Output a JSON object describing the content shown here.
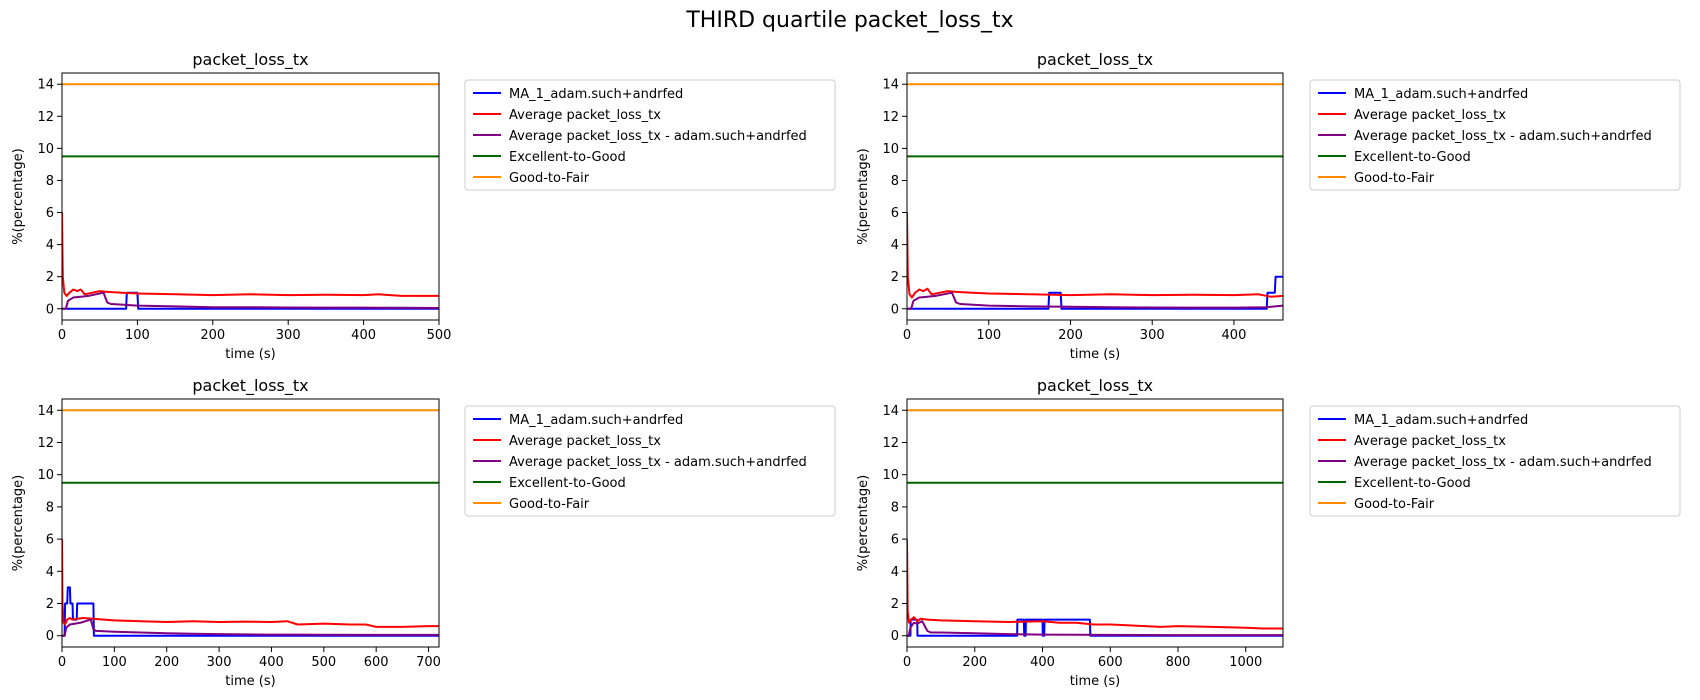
{
  "figure": {
    "title": "THIRD quartile packet_loss_tx"
  },
  "colors": {
    "ma1": "#0000ff",
    "average": "#ff0000",
    "average_user": "#800080",
    "excellent_to_good": "#006400",
    "good_to_fair": "#ff8c00"
  },
  "chart_data": [
    {
      "type": "line",
      "title": "packet_loss_tx",
      "xlabel": "time (s)",
      "ylabel": "%(percentage)",
      "xlim": [
        0,
        500
      ],
      "ylim": [
        -0.7,
        14.7
      ],
      "xticks": [
        0,
        100,
        200,
        300,
        400,
        500
      ],
      "yticks": [
        0,
        2,
        4,
        6,
        8,
        10,
        12,
        14
      ],
      "grid": false,
      "legend_position": "outside-right",
      "series": [
        {
          "name": "MA_1_adam.such+andrfed",
          "color_key": "ma1",
          "x": [
            0,
            85,
            86,
            100,
            101,
            500
          ],
          "y": [
            0,
            0,
            1,
            1,
            0,
            0
          ]
        },
        {
          "name": "Average packet_loss_tx",
          "color_key": "average",
          "x": [
            0,
            1,
            3,
            6,
            10,
            15,
            20,
            25,
            30,
            40,
            50,
            60,
            80,
            100,
            150,
            200,
            250,
            300,
            350,
            400,
            420,
            450,
            500
          ],
          "y": [
            6,
            2,
            1.0,
            0.8,
            1.0,
            1.2,
            1.1,
            1.2,
            0.9,
            1.0,
            1.1,
            1.05,
            1.0,
            0.95,
            0.9,
            0.85,
            0.9,
            0.85,
            0.88,
            0.85,
            0.9,
            0.8,
            0.8
          ]
        },
        {
          "name": "Average packet_loss_tx - adam.such+andrfed",
          "color_key": "average_user",
          "x": [
            0,
            5,
            8,
            15,
            25,
            35,
            45,
            55,
            60,
            65,
            100,
            150,
            200,
            250,
            300,
            350,
            400,
            450,
            500
          ],
          "y": [
            0,
            0,
            0.5,
            0.7,
            0.75,
            0.8,
            0.9,
            1.0,
            0.4,
            0.3,
            0.2,
            0.15,
            0.1,
            0.1,
            0.08,
            0.07,
            0.07,
            0.06,
            0.05
          ]
        },
        {
          "name": "Excellent-to-Good",
          "color_key": "excellent_to_good",
          "x": [
            0,
            500
          ],
          "y": [
            9.5,
            9.5
          ]
        },
        {
          "name": "Good-to-Fair",
          "color_key": "good_to_fair",
          "x": [
            0,
            500
          ],
          "y": [
            14,
            14
          ]
        }
      ]
    },
    {
      "type": "line",
      "title": "packet_loss_tx",
      "xlabel": "time (s)",
      "ylabel": "%(percentage)",
      "xlim": [
        0,
        460
      ],
      "ylim": [
        -0.7,
        14.7
      ],
      "xticks": [
        0,
        100,
        200,
        300,
        400
      ],
      "yticks": [
        0,
        2,
        4,
        6,
        8,
        10,
        12,
        14
      ],
      "grid": false,
      "legend_position": "outside-right",
      "series": [
        {
          "name": "MA_1_adam.such+andrfed",
          "color_key": "ma1",
          "x": [
            0,
            173,
            174,
            188,
            189,
            440,
            441,
            450,
            451,
            460
          ],
          "y": [
            0,
            0,
            1,
            1,
            0,
            0,
            1,
            1,
            2,
            2
          ]
        },
        {
          "name": "Average packet_loss_tx",
          "color_key": "average",
          "x": [
            0,
            1,
            3,
            6,
            10,
            15,
            20,
            25,
            30,
            40,
            50,
            60,
            80,
            100,
            150,
            200,
            250,
            300,
            350,
            400,
            430,
            445,
            460
          ],
          "y": [
            6,
            2,
            0.9,
            0.7,
            1.0,
            1.2,
            1.1,
            1.25,
            0.9,
            1.0,
            1.1,
            1.05,
            1.0,
            0.95,
            0.9,
            0.85,
            0.9,
            0.85,
            0.88,
            0.85,
            0.9,
            0.75,
            0.8
          ]
        },
        {
          "name": "Average packet_loss_tx - adam.such+andrfed",
          "color_key": "average_user",
          "x": [
            0,
            5,
            8,
            15,
            25,
            35,
            45,
            55,
            60,
            65,
            100,
            150,
            200,
            250,
            300,
            350,
            400,
            440,
            460
          ],
          "y": [
            0,
            0,
            0.5,
            0.7,
            0.75,
            0.8,
            0.9,
            1.0,
            0.4,
            0.3,
            0.2,
            0.15,
            0.12,
            0.1,
            0.08,
            0.07,
            0.07,
            0.1,
            0.2
          ]
        },
        {
          "name": "Excellent-to-Good",
          "color_key": "excellent_to_good",
          "x": [
            0,
            460
          ],
          "y": [
            9.5,
            9.5
          ]
        },
        {
          "name": "Good-to-Fair",
          "color_key": "good_to_fair",
          "x": [
            0,
            460
          ],
          "y": [
            14,
            14
          ]
        }
      ]
    },
    {
      "type": "line",
      "title": "packet_loss_tx",
      "xlabel": "time (s)",
      "ylabel": "%(percentage)",
      "xlim": [
        0,
        720
      ],
      "ylim": [
        -0.7,
        14.7
      ],
      "xticks": [
        0,
        100,
        200,
        300,
        400,
        500,
        600,
        700
      ],
      "yticks": [
        0,
        2,
        4,
        6,
        8,
        10,
        12,
        14
      ],
      "grid": false,
      "legend_position": "outside-right",
      "series": [
        {
          "name": "MA_1_adam.such+andrfed",
          "color_key": "ma1",
          "x": [
            0,
            5,
            6,
            10,
            11,
            15,
            16,
            20,
            21,
            28,
            29,
            60,
            61,
            720
          ],
          "y": [
            0,
            0,
            2,
            2,
            3,
            3,
            2,
            2,
            1,
            1,
            2,
            2,
            0,
            0
          ]
        },
        {
          "name": "Average packet_loss_tx",
          "color_key": "average",
          "x": [
            0,
            1,
            3,
            6,
            10,
            15,
            20,
            30,
            40,
            60,
            80,
            100,
            150,
            200,
            250,
            300,
            350,
            400,
            430,
            450,
            500,
            550,
            580,
            600,
            650,
            700,
            720
          ],
          "y": [
            6,
            2,
            0.8,
            0.7,
            1.0,
            1.1,
            1.0,
            1.05,
            1.1,
            1.05,
            1.0,
            0.95,
            0.9,
            0.85,
            0.9,
            0.85,
            0.88,
            0.85,
            0.9,
            0.7,
            0.75,
            0.7,
            0.7,
            0.55,
            0.55,
            0.6,
            0.6
          ]
        },
        {
          "name": "Average packet_loss_tx - adam.such+andrfed",
          "color_key": "average_user",
          "x": [
            0,
            5,
            8,
            15,
            25,
            35,
            45,
            55,
            60,
            65,
            100,
            150,
            200,
            250,
            300,
            350,
            400,
            450,
            500,
            600,
            720
          ],
          "y": [
            0,
            0,
            0.5,
            0.7,
            0.75,
            0.8,
            0.9,
            1.0,
            0.4,
            0.3,
            0.25,
            0.2,
            0.15,
            0.12,
            0.1,
            0.08,
            0.07,
            0.07,
            0.06,
            0.05,
            0.05
          ]
        },
        {
          "name": "Excellent-to-Good",
          "color_key": "excellent_to_good",
          "x": [
            0,
            720
          ],
          "y": [
            9.5,
            9.5
          ]
        },
        {
          "name": "Good-to-Fair",
          "color_key": "good_to_fair",
          "x": [
            0,
            720
          ],
          "y": [
            14,
            14
          ]
        }
      ]
    },
    {
      "type": "line",
      "title": "packet_loss_tx",
      "xlabel": "time (s)",
      "ylabel": "%(percentage)",
      "xlim": [
        0,
        1110
      ],
      "ylim": [
        -0.7,
        14.7
      ],
      "xticks": [
        0,
        200,
        400,
        600,
        800,
        1000
      ],
      "yticks": [
        0,
        2,
        4,
        6,
        8,
        10,
        12,
        14
      ],
      "grid": false,
      "legend_position": "outside-right",
      "series": [
        {
          "name": "MA_1_adam.such+andrfed",
          "color_key": "ma1",
          "x": [
            0,
            10,
            11,
            30,
            31,
            40,
            41,
            325,
            326,
            345,
            346,
            350,
            351,
            365,
            366,
            400,
            401,
            405,
            406,
            540,
            541,
            1110
          ],
          "y": [
            0,
            0,
            1,
            1,
            0,
            0,
            0,
            0,
            1,
            1,
            0,
            0,
            1,
            1,
            1,
            1,
            0,
            0,
            1,
            1,
            0,
            0
          ]
        },
        {
          "name": "Average packet_loss_tx",
          "color_key": "average",
          "x": [
            0,
            2,
            6,
            12,
            20,
            30,
            40,
            60,
            100,
            200,
            300,
            400,
            450,
            500,
            550,
            600,
            650,
            700,
            750,
            800,
            900,
            1000,
            1050,
            1110
          ],
          "y": [
            6,
            1.5,
            0.8,
            1.0,
            1.15,
            0.9,
            1.05,
            1.0,
            0.95,
            0.9,
            0.85,
            0.9,
            0.8,
            0.8,
            0.7,
            0.7,
            0.65,
            0.6,
            0.55,
            0.6,
            0.55,
            0.5,
            0.45,
            0.45
          ]
        },
        {
          "name": "Average packet_loss_tx - adam.such+andrfed",
          "color_key": "average_user",
          "x": [
            0,
            5,
            10,
            20,
            30,
            45,
            55,
            60,
            70,
            100,
            200,
            300,
            350,
            400,
            500,
            600,
            800,
            1110
          ],
          "y": [
            0,
            0,
            0.5,
            0.8,
            0.75,
            0.9,
            0.5,
            0.3,
            0.2,
            0.2,
            0.15,
            0.1,
            0.08,
            0.07,
            0.06,
            0.05,
            0.04,
            0.04
          ]
        },
        {
          "name": "Excellent-to-Good",
          "color_key": "excellent_to_good",
          "x": [
            0,
            1110
          ],
          "y": [
            9.5,
            9.5
          ]
        },
        {
          "name": "Good-to-Fair",
          "color_key": "good_to_fair",
          "x": [
            0,
            1110
          ],
          "y": [
            14,
            14
          ]
        }
      ]
    }
  ]
}
